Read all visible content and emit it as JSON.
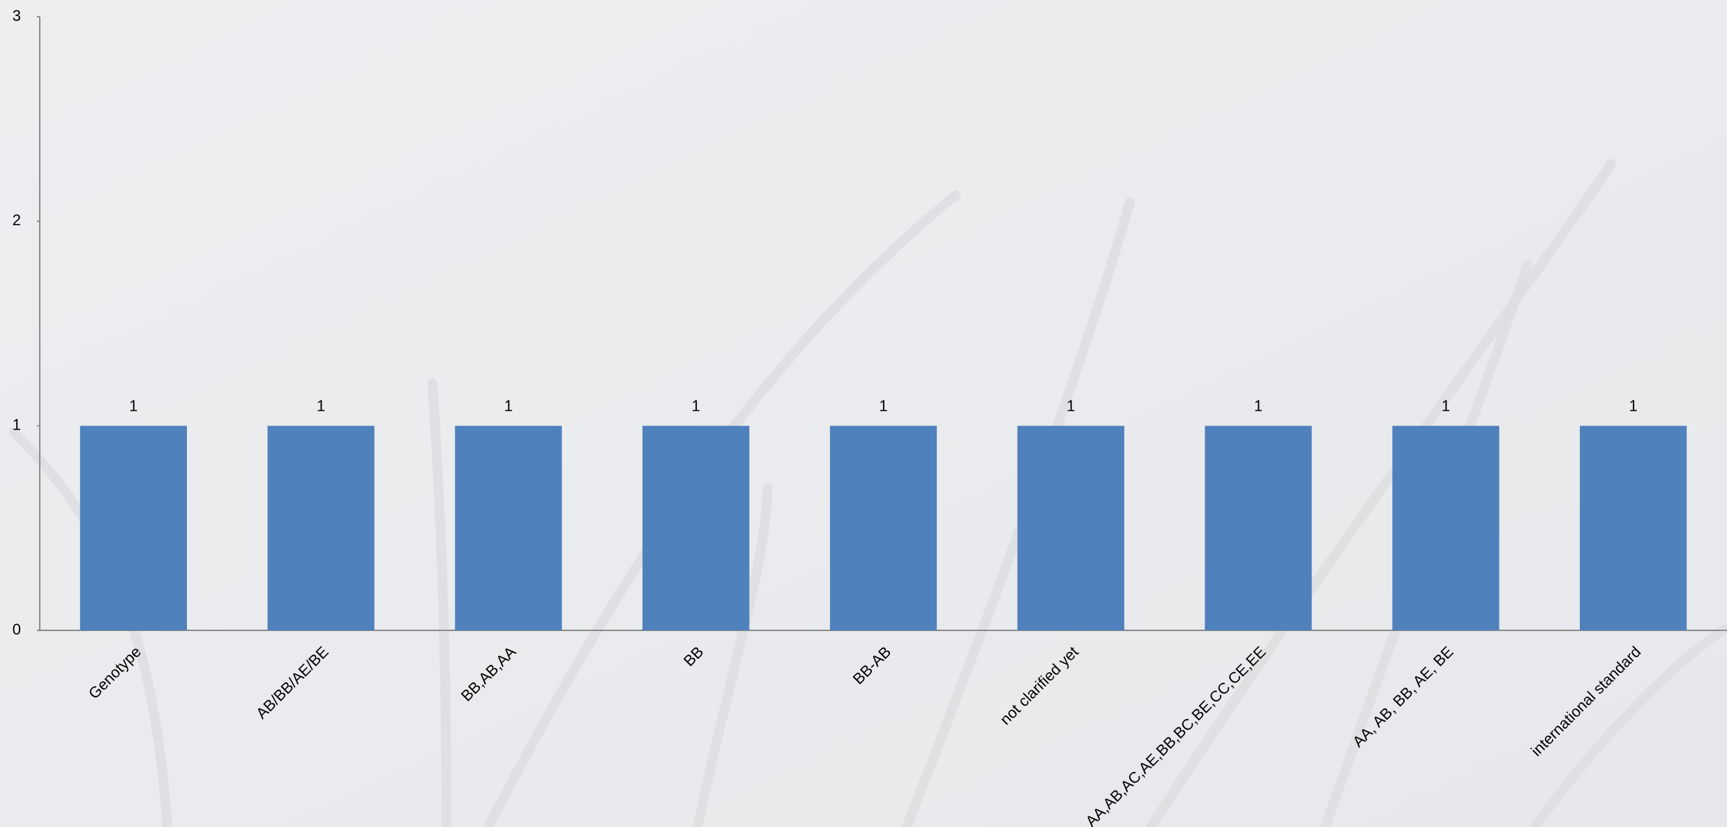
{
  "chart_data": {
    "type": "bar",
    "categories": [
      "Genotype",
      "AB/BB/AE/BE",
      "BB,AB,AA",
      "BB",
      "BB-AB",
      "not clarified yet",
      "AA,AB,AC,AE,BB,BC,BE,CC,CE,EE",
      "AA, AB, BB, AE, BE",
      "international standard"
    ],
    "values": [
      1,
      1,
      1,
      1,
      1,
      1,
      1,
      1,
      1
    ],
    "color": "#4f81bd",
    "ylim": [
      0,
      3
    ],
    "yticks": [
      0,
      1,
      2,
      3
    ],
    "grid": false
  }
}
